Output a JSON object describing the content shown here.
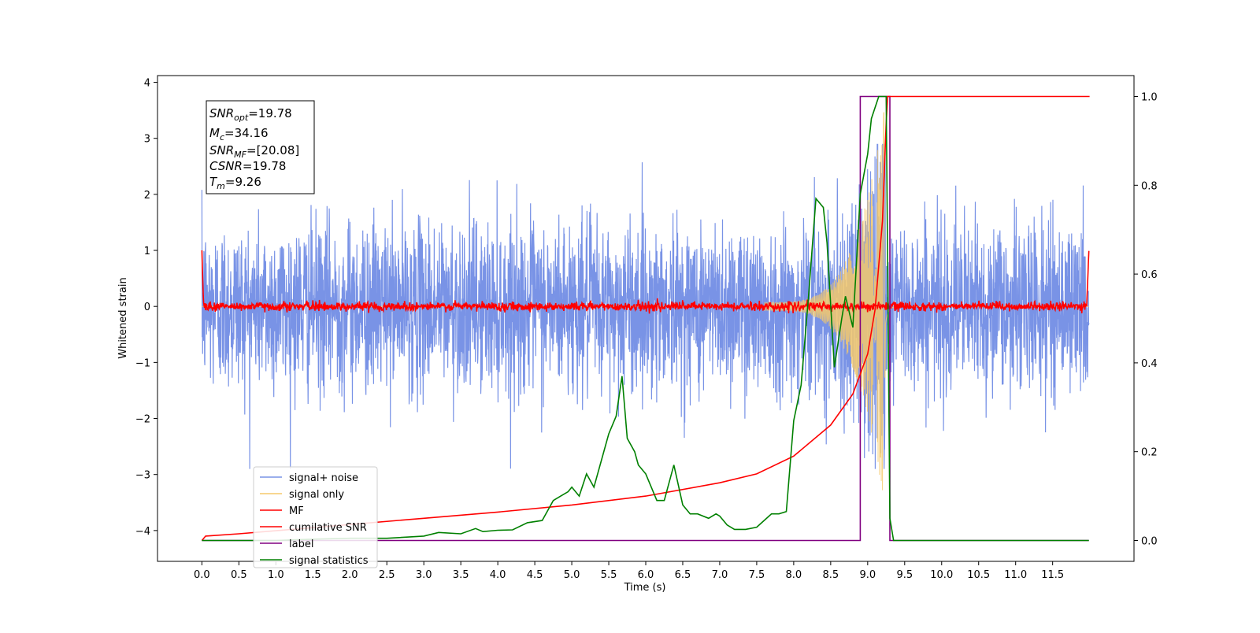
{
  "chart_data": {
    "type": "line",
    "xlabel": "Time (s)",
    "ylabel": "Whitened strain",
    "xlim": [
      -0.6,
      12.6
    ],
    "ylim_left": [
      -4.55,
      4.12
    ],
    "ylim_right": [
      -0.047,
      1.047
    ],
    "x_ticks": [
      "0.0",
      "0.5",
      "1.0",
      "1.5",
      "2.0",
      "2.5",
      "3.0",
      "3.5",
      "4.0",
      "4.5",
      "5.0",
      "5.5",
      "6.0",
      "6.5",
      "7.0",
      "7.5",
      "8.0",
      "8.5",
      "9.0",
      "9.5",
      "10.0",
      "10.5",
      "11.0",
      "11.5"
    ],
    "y_ticks_left": [
      "4",
      "3",
      "2",
      "1",
      "0",
      "−1",
      "−2",
      "−3",
      "−4"
    ],
    "y_ticks_right": [
      "1.0",
      "0.8",
      "0.6",
      "0.4",
      "0.2",
      "0.0"
    ],
    "grid": false,
    "legend_position": "lower-left",
    "info_box": {
      "snr_opt": {
        "base": "SNR",
        "sub": "opt",
        "value": "=19.78"
      },
      "mc": {
        "base": "M",
        "sub": "c",
        "value": "=34.16"
      },
      "snr_mf": {
        "base": "SNR",
        "sub": "MF",
        "value": "=[20.08]"
      },
      "csnr": {
        "base": "CSNR",
        "sub": "",
        "value": "=19.78"
      },
      "tm": {
        "base": "T",
        "sub": "m",
        "value": "=9.26"
      }
    },
    "series": [
      {
        "name": "signal+ noise",
        "color": "#7993e6",
        "axis": "left",
        "description": "noisy strain, roughly Gaussian, amplitude about ±2.5, spanning 0 to 11.99 s"
      },
      {
        "name": "signal only",
        "color": "#f5c96b",
        "axis": "left",
        "description": "chirp growing from 8.0 s, peaking near 9.2 s (amplitude about 3.5) then ringing down by 9.35 s"
      },
      {
        "name": "MF",
        "color": "#ff0000",
        "axis": "left",
        "description": "matched filter output, near 0 with small noise, 1.0 at the edges"
      },
      {
        "name": "cumilative SNR",
        "color": "#ff0000",
        "axis": "right",
        "x": [
          0.0,
          0.05,
          0.5,
          1.0,
          2.0,
          3.0,
          4.0,
          5.0,
          6.0,
          7.0,
          7.5,
          8.0,
          8.5,
          8.8,
          9.0,
          9.1,
          9.2,
          9.25,
          9.27,
          9.3,
          10.0,
          11.0,
          12.0
        ],
        "values": [
          0.0,
          0.01,
          0.015,
          0.022,
          0.036,
          0.05,
          0.064,
          0.08,
          0.1,
          0.13,
          0.15,
          0.19,
          0.26,
          0.33,
          0.42,
          0.52,
          0.72,
          0.94,
          1.0,
          1.0,
          1.0,
          1.0,
          1.0
        ]
      },
      {
        "name": "label",
        "color": "#800080",
        "axis": "right",
        "x": [
          0.0,
          8.9,
          8.9,
          9.3,
          9.3,
          11.99
        ],
        "values": [
          0.0,
          0.0,
          1.0,
          1.0,
          0.0,
          0.0
        ]
      },
      {
        "name": "signal statistics",
        "color": "#008000",
        "axis": "right",
        "x": [
          0.0,
          0.5,
          1.0,
          1.5,
          2.0,
          2.5,
          3.0,
          3.2,
          3.5,
          3.7,
          3.8,
          4.0,
          4.2,
          4.4,
          4.6,
          4.75,
          4.85,
          4.95,
          5.0,
          5.1,
          5.2,
          5.3,
          5.4,
          5.5,
          5.6,
          5.68,
          5.75,
          5.85,
          5.9,
          6.0,
          6.15,
          6.25,
          6.38,
          6.5,
          6.6,
          6.7,
          6.85,
          6.95,
          7.0,
          7.1,
          7.2,
          7.35,
          7.5,
          7.6,
          7.7,
          7.8,
          7.9,
          8.0,
          8.1,
          8.2,
          8.3,
          8.4,
          8.45,
          8.55,
          8.65,
          8.7,
          8.8,
          8.9,
          9.0,
          9.05,
          9.15,
          9.2,
          9.25,
          9.3,
          9.35,
          9.5,
          10.0,
          11.0,
          11.99
        ],
        "values": [
          0.0,
          0.0,
          0.0,
          0.003,
          0.005,
          0.005,
          0.01,
          0.018,
          0.015,
          0.027,
          0.02,
          0.023,
          0.024,
          0.04,
          0.045,
          0.09,
          0.1,
          0.11,
          0.12,
          0.1,
          0.15,
          0.12,
          0.18,
          0.24,
          0.28,
          0.37,
          0.23,
          0.2,
          0.17,
          0.15,
          0.09,
          0.09,
          0.17,
          0.08,
          0.06,
          0.06,
          0.05,
          0.06,
          0.055,
          0.035,
          0.025,
          0.025,
          0.03,
          0.045,
          0.06,
          0.06,
          0.065,
          0.27,
          0.35,
          0.55,
          0.77,
          0.75,
          0.67,
          0.39,
          0.5,
          0.55,
          0.48,
          0.78,
          0.87,
          0.95,
          1.0,
          1.0,
          1.0,
          0.05,
          0.0,
          0.0,
          0.0,
          0.0,
          0.0
        ]
      }
    ]
  }
}
